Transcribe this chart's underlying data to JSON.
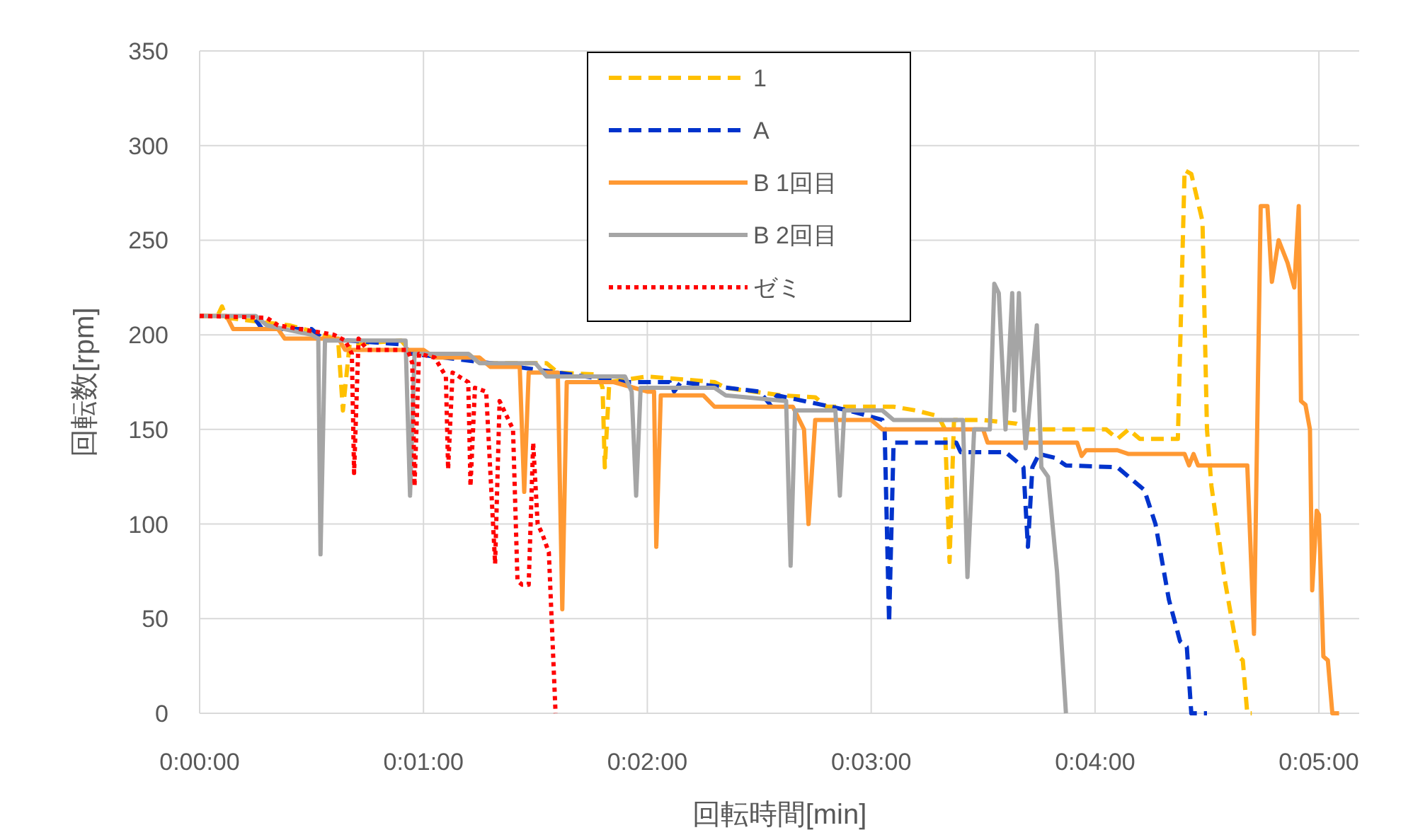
{
  "chart_data": {
    "type": "line",
    "xlabel": "回転時間[min]",
    "ylabel": "回転数[rpm]",
    "xlim": [
      0,
      5.18
    ],
    "xticks": [
      {
        "value": 0,
        "label": "0:00:00"
      },
      {
        "value": 1,
        "label": "0:01:00"
      },
      {
        "value": 2,
        "label": "0:02:00"
      },
      {
        "value": 3,
        "label": "0:03:00"
      },
      {
        "value": 4,
        "label": "0:04:00"
      },
      {
        "value": 5,
        "label": "0:05:00"
      }
    ],
    "ylim": [
      0,
      350
    ],
    "yticks": [
      0,
      50,
      100,
      150,
      200,
      250,
      300,
      350
    ],
    "grid": true,
    "legend": "top",
    "series": [
      {
        "name": "1",
        "color": "#ffc000",
        "line_style": "dashed",
        "x": [
          0,
          0.08,
          0.1,
          0.12,
          0.4,
          0.5,
          0.6,
          0.62,
          0.64,
          0.67,
          0.9,
          0.95,
          1.2,
          1.25,
          1.55,
          1.6,
          1.78,
          1.8,
          1.81,
          1.83,
          2.0,
          2.3,
          2.35,
          2.6,
          2.75,
          2.8,
          3.1,
          3.2,
          3.3,
          3.33,
          3.35,
          3.37,
          3.5,
          3.65,
          3.7,
          4.05,
          4.1,
          4.15,
          4.2,
          4.37,
          4.4,
          4.43,
          4.48,
          4.5,
          4.52,
          4.58,
          4.64,
          4.66,
          4.68,
          4.7
        ],
        "values": [
          210,
          210,
          215,
          209,
          205,
          202,
          198,
          195,
          160,
          195,
          197,
          190,
          190,
          185,
          185,
          180,
          179,
          172,
          130,
          175,
          178,
          175,
          172,
          168,
          167,
          162,
          162,
          160,
          157,
          150,
          80,
          155,
          155,
          153,
          150,
          150,
          145,
          150,
          145,
          145,
          287,
          285,
          260,
          150,
          120,
          70,
          30,
          28,
          0,
          0
        ]
      },
      {
        "name": "A",
        "color": "#0033cc",
        "line_style": "dashed",
        "x": [
          0.25,
          0.28,
          0.5,
          0.55,
          0.9,
          0.95,
          1.3,
          1.6,
          1.9,
          2.1,
          2.12,
          2.15,
          2.5,
          2.55,
          2.58,
          2.9,
          3.05,
          3.06,
          3.08,
          3.1,
          3.38,
          3.4,
          3.6,
          3.65,
          3.68,
          3.7,
          3.72,
          3.75,
          3.82,
          3.87,
          4.1,
          4.15,
          4.22,
          4.27,
          4.33,
          4.38,
          4.41,
          4.43,
          4.5
        ],
        "values": [
          208,
          203,
          203,
          198,
          195,
          190,
          185,
          180,
          175,
          175,
          170,
          175,
          170,
          163,
          168,
          160,
          155,
          150,
          48,
          143,
          143,
          138,
          138,
          133,
          130,
          88,
          130,
          137,
          135,
          131,
          130,
          125,
          118,
          100,
          60,
          38,
          35,
          0,
          0
        ]
      },
      {
        "name": "B 1回目",
        "color": "#ff9933",
        "line_style": "solid",
        "x": [
          0,
          0.12,
          0.15,
          0.35,
          0.38,
          0.62,
          0.65,
          1.0,
          1.05,
          1.25,
          1.3,
          1.43,
          1.45,
          1.47,
          1.6,
          1.62,
          1.64,
          1.85,
          2.0,
          2.03,
          2.04,
          2.06,
          2.25,
          2.3,
          2.65,
          2.7,
          2.72,
          2.75,
          3.0,
          3.05,
          3.5,
          3.52,
          3.92,
          3.94,
          3.96,
          4.1,
          4.15,
          4.4,
          4.42,
          4.44,
          4.46,
          4.68,
          4.71,
          4.74,
          4.77,
          4.79,
          4.82,
          4.86,
          4.89,
          4.91,
          4.92,
          4.94,
          4.96,
          4.97,
          4.99,
          5.0,
          5.02,
          5.04,
          5.06,
          5.09
        ],
        "values": [
          210,
          210,
          203,
          203,
          198,
          198,
          192,
          192,
          188,
          188,
          183,
          183,
          117,
          180,
          180,
          55,
          175,
          175,
          170,
          170,
          88,
          168,
          168,
          162,
          162,
          150,
          100,
          155,
          155,
          150,
          150,
          143,
          143,
          136,
          139,
          139,
          137,
          137,
          131,
          137,
          131,
          131,
          42,
          268,
          268,
          228,
          250,
          238,
          225,
          268,
          165,
          163,
          150,
          65,
          107,
          105,
          30,
          28,
          0,
          0
        ]
      },
      {
        "name": "B 2回目",
        "color": "#a5a5a5",
        "line_style": "solid",
        "x": [
          0,
          0.25,
          0.3,
          0.5,
          0.53,
          0.54,
          0.56,
          0.92,
          0.94,
          0.96,
          1.2,
          1.25,
          1.5,
          1.55,
          1.9,
          1.93,
          1.95,
          1.97,
          2.3,
          2.35,
          2.62,
          2.64,
          2.66,
          2.84,
          2.86,
          2.88,
          3.05,
          3.1,
          3.41,
          3.43,
          3.46,
          3.53,
          3.55,
          3.57,
          3.6,
          3.63,
          3.64,
          3.66,
          3.68,
          3.69,
          3.74,
          3.76,
          3.79,
          3.83,
          3.87
        ],
        "values": [
          210,
          210,
          205,
          200,
          198,
          84,
          197,
          197,
          115,
          190,
          190,
          185,
          185,
          178,
          178,
          170,
          115,
          172,
          172,
          168,
          165,
          78,
          160,
          160,
          115,
          160,
          160,
          155,
          155,
          72,
          150,
          150,
          227,
          222,
          150,
          222,
          160,
          222,
          160,
          140,
          205,
          130,
          125,
          75,
          0
        ]
      },
      {
        "name": "ゼミ",
        "color": "#ff0000",
        "line_style": "dotted",
        "x": [
          0,
          0.3,
          0.35,
          0.6,
          0.65,
          0.68,
          0.69,
          0.71,
          0.75,
          0.93,
          0.95,
          0.96,
          0.98,
          1.05,
          1.1,
          1.11,
          1.13,
          1.2,
          1.21,
          1.23,
          1.28,
          1.32,
          1.34,
          1.4,
          1.42,
          1.44,
          1.47,
          1.49,
          1.51,
          1.53,
          1.56,
          1.59
        ],
        "values": [
          210,
          209,
          205,
          200,
          197,
          190,
          127,
          198,
          192,
          192,
          185,
          120,
          190,
          188,
          178,
          129,
          180,
          175,
          120,
          172,
          170,
          79,
          165,
          150,
          70,
          68,
          68,
          143,
          100,
          95,
          85,
          0
        ]
      }
    ]
  }
}
